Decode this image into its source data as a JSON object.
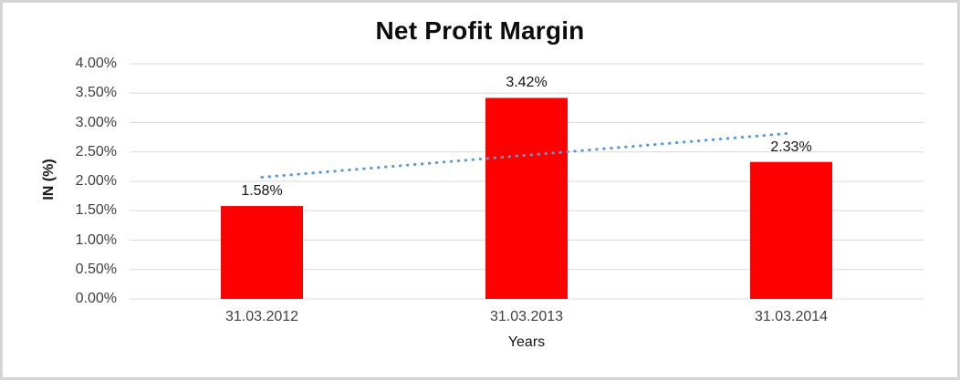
{
  "window": {
    "background": "#FFFFFF",
    "border_color": "#D5D5D5"
  },
  "chart_data": {
    "type": "bar",
    "title": "Net Profit Margin",
    "xlabel": "Years",
    "ylabel": "IN (%)",
    "categories": [
      "31.03.2012",
      "31.03.2013",
      "31.03.2014"
    ],
    "values": [
      1.58,
      3.42,
      2.33
    ],
    "data_labels": [
      "1.58%",
      "3.42%",
      "2.33%"
    ],
    "ylim": [
      0,
      4
    ],
    "ytick_step": 0.5,
    "ytick_labels": [
      "0.00%",
      "0.50%",
      "1.00%",
      "1.50%",
      "2.00%",
      "2.50%",
      "3.00%",
      "3.50%",
      "4.00%"
    ],
    "grid": "horizontal",
    "legend": "none",
    "bar_color": "#FF0000",
    "gridline_color": "#D9D9D9",
    "axis_text_color": "#3F3F3F",
    "trendline": {
      "type": "linear",
      "style": "dotted",
      "color": "#5B9BD5",
      "start_value": 2.07,
      "end_value": 2.82
    }
  }
}
